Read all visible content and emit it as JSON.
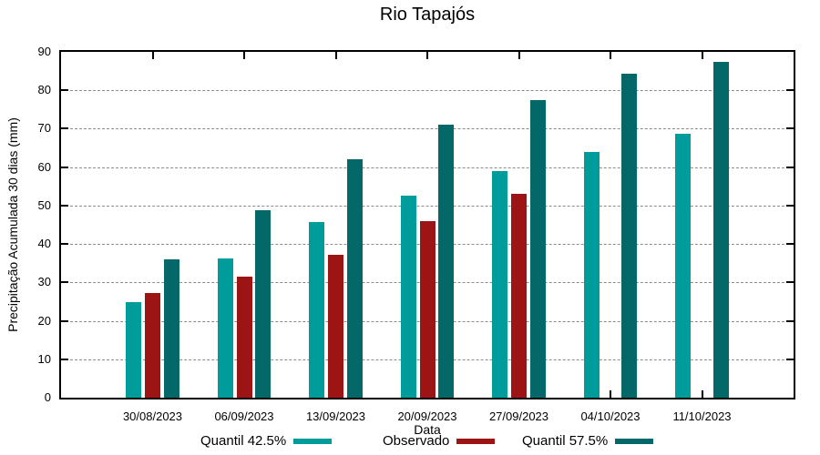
{
  "title": "Rio Tapajós",
  "chart_data": {
    "type": "bar",
    "title": "Rio Tapajós",
    "xlabel": "Data",
    "ylabel": "Precipitação Acumulada 30 dias (mm)",
    "ylim": [
      0,
      90
    ],
    "y_ticks": [
      0,
      10,
      20,
      30,
      40,
      50,
      60,
      70,
      80,
      90
    ],
    "grid": "horizontal-dashed",
    "legend_position": "bottom-center",
    "categories": [
      "30/08/2023",
      "06/09/2023",
      "13/09/2023",
      "20/09/2023",
      "27/09/2023",
      "04/10/2023",
      "11/10/2023"
    ],
    "series": [
      {
        "name": "Quantil 42.5%",
        "color": "#009C9C",
        "values": [
          24.9,
          36.2,
          45.8,
          52.7,
          58.9,
          64.0,
          68.8
        ]
      },
      {
        "name": "Observado",
        "color": "#9D1414",
        "values": [
          27.2,
          31.5,
          37.1,
          45.9,
          53.1,
          null,
          null
        ]
      },
      {
        "name": "Quantil 57.5%",
        "color": "#046868",
        "values": [
          36.0,
          48.9,
          62.0,
          71.0,
          77.4,
          84.3,
          87.4
        ]
      }
    ]
  },
  "colors": {
    "background": "#ffffff",
    "axis": "#000000",
    "grid": "#8c8c8c",
    "text": "#000000"
  }
}
